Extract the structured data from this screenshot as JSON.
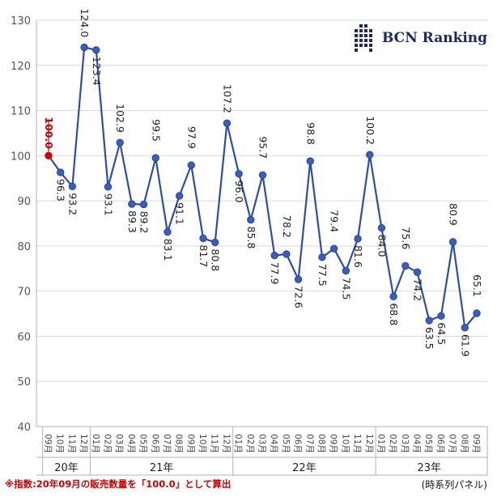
{
  "brand": {
    "name": "BCN Ranking",
    "color": "#1c2a64"
  },
  "footnote": "※指数:20年09月の販売数量を「100.0」として算出",
  "source_note": "(時系列パネル)",
  "colors": {
    "line": "#2b4fa3",
    "marker": "#3a5ec0",
    "highlight": "#cc0000",
    "grid": "#d9d9d9",
    "axis": "#b0b0b0"
  },
  "chart_data": {
    "type": "line",
    "title": "",
    "xlabel": "",
    "ylabel": "",
    "ylim": [
      40,
      130
    ],
    "yticks": [
      40,
      50,
      60,
      70,
      80,
      90,
      100,
      110,
      120,
      130
    ],
    "grid": true,
    "highlight_index": 0,
    "categories": [
      "09月",
      "10月",
      "11月",
      "12月",
      "01月",
      "02月",
      "03月",
      "04月",
      "05月",
      "06月",
      "07月",
      "08月",
      "09月",
      "10月",
      "11月",
      "12月",
      "01月",
      "02月",
      "03月",
      "04月",
      "05月",
      "06月",
      "07月",
      "08月",
      "09月",
      "10月",
      "11月",
      "12月",
      "01月",
      "02月",
      "03月",
      "04月",
      "05月",
      "06月",
      "07月",
      "08月",
      "09月"
    ],
    "years": [
      {
        "label": "20年",
        "start": 0,
        "end": 3
      },
      {
        "label": "21年",
        "start": 4,
        "end": 15
      },
      {
        "label": "22年",
        "start": 16,
        "end": 27
      },
      {
        "label": "23年",
        "start": 28,
        "end": 36
      }
    ],
    "series": [
      {
        "values": [
          100.0,
          96.3,
          93.2,
          124.0,
          123.4,
          93.1,
          102.9,
          89.3,
          89.2,
          99.5,
          83.1,
          91.1,
          97.9,
          81.7,
          80.8,
          107.2,
          96.0,
          85.8,
          95.7,
          77.9,
          78.2,
          72.6,
          98.8,
          77.5,
          79.4,
          74.5,
          81.6,
          100.2,
          84.0,
          68.8,
          75.6,
          74.2,
          63.5,
          64.5,
          80.9,
          61.9,
          65.1
        ],
        "labels": [
          "100.0",
          "96.3",
          "93.2",
          "124.0",
          "123.4",
          "93.1",
          "102.9",
          "89.3",
          "89.2",
          "99.5",
          "83.1",
          "91.1",
          "97.9",
          "81.7",
          "80.8",
          "107.2",
          "96.0",
          "85.8",
          "95.7",
          "77.9",
          "78.2",
          "72.6",
          "98.8",
          "77.5",
          "79.4",
          "74.5",
          "81.6",
          "100.2",
          "84.0",
          "68.8",
          "75.6",
          "74.2",
          "63.5",
          "64.5",
          "80.9",
          "61.9",
          "65.1"
        ]
      }
    ]
  }
}
